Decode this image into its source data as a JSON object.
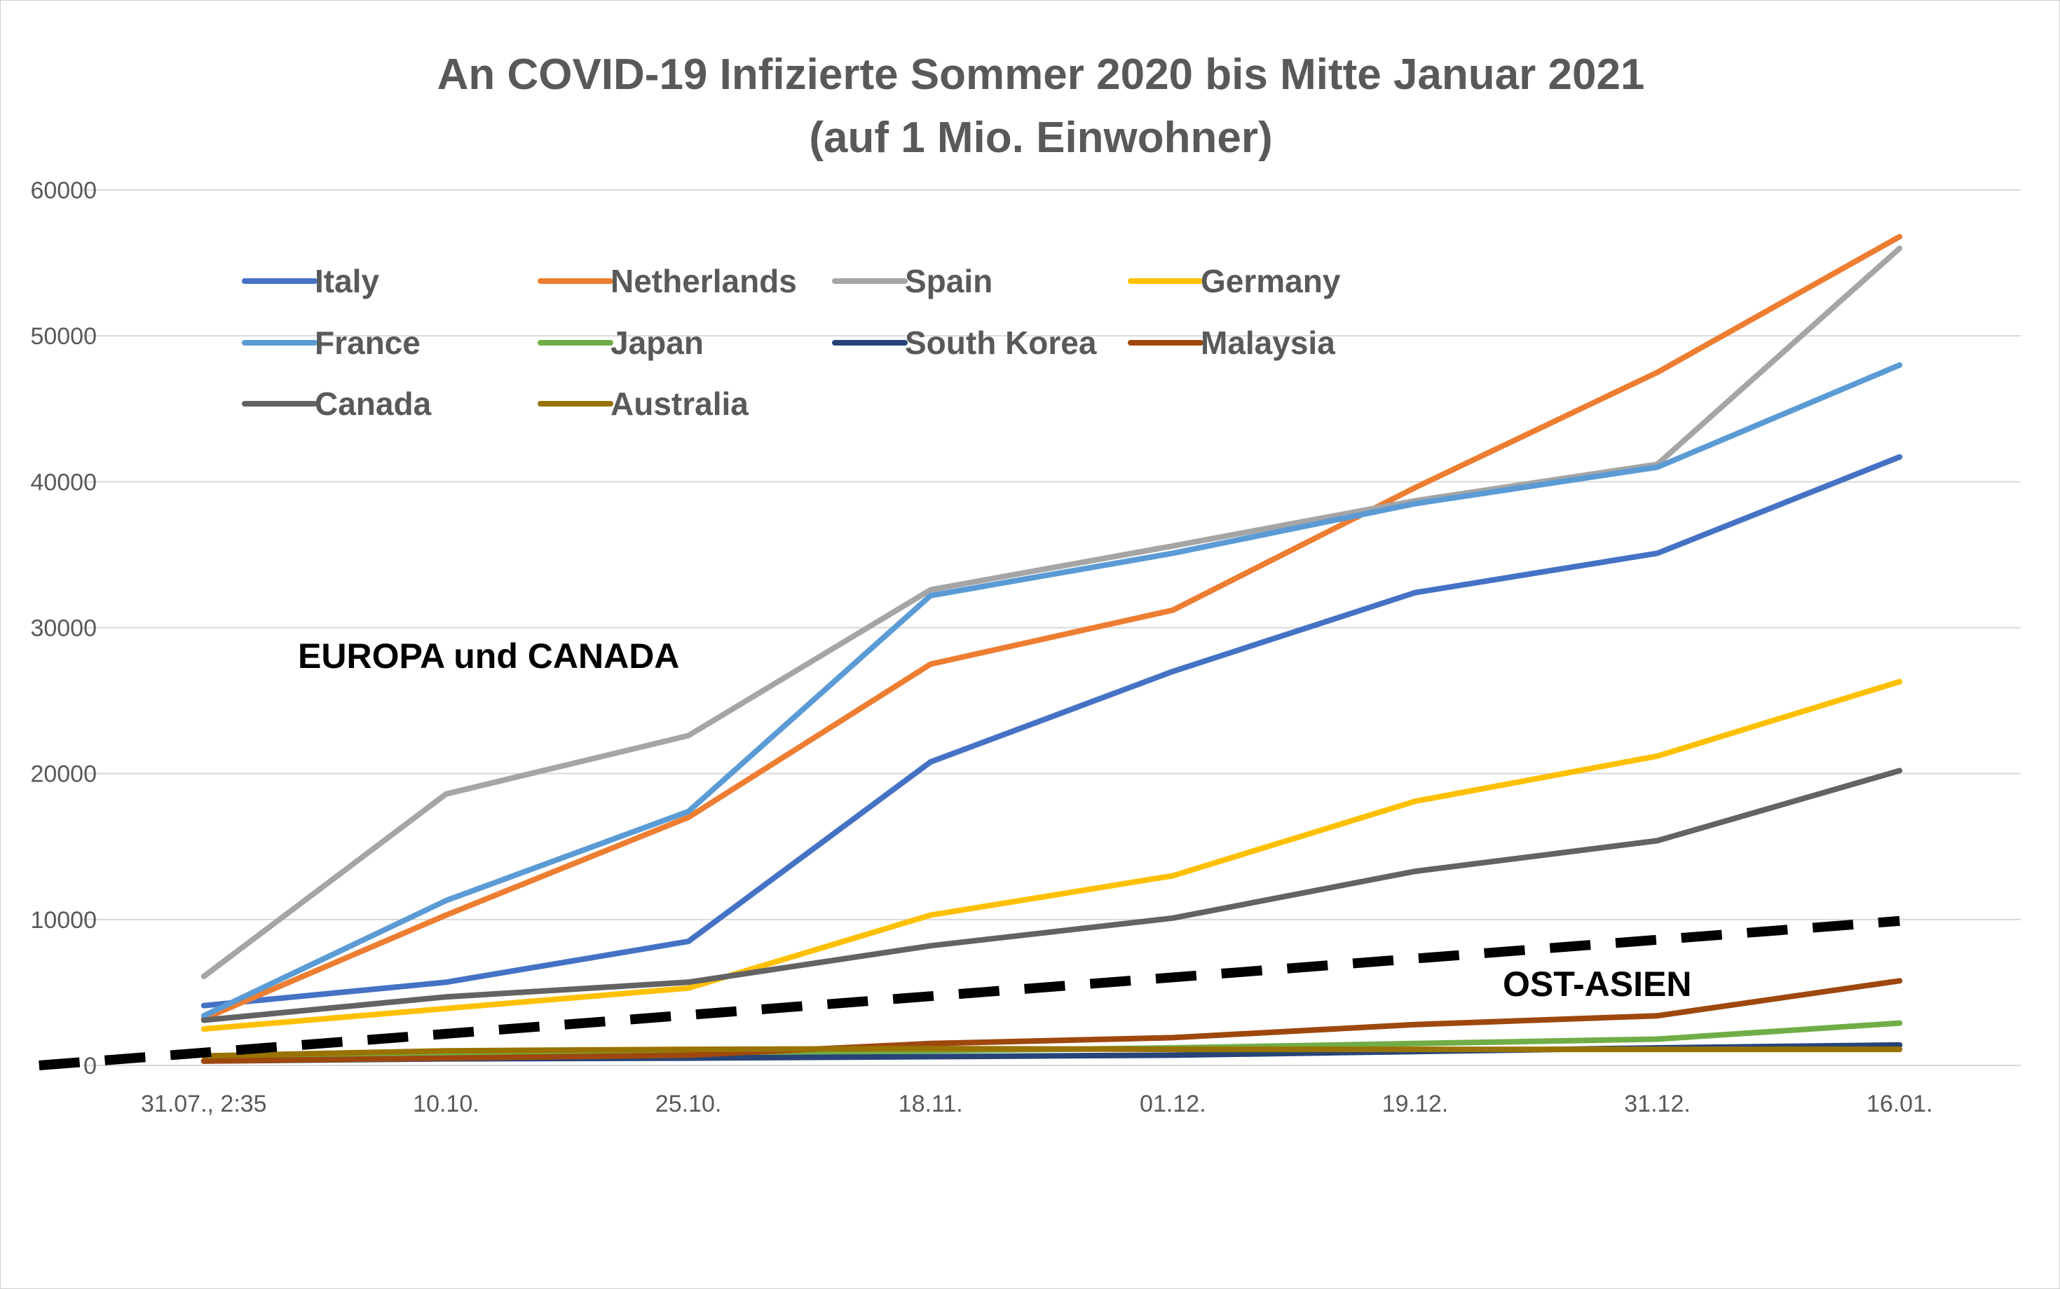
{
  "chart_data": {
    "type": "line",
    "title": "An COVID-19 Infizierte Sommer 2020 bis Mitte Januar 2021",
    "subtitle": "(auf 1 Mio. Einwohner)",
    "xlabel": "",
    "ylabel": "",
    "categories": [
      "31.07., 2:35",
      "10.10.",
      "25.10.",
      "18.11.",
      "01.12.",
      "19.12.",
      "31.12.",
      "16.01."
    ],
    "ylim": [
      0,
      60000
    ],
    "yticks": [
      0,
      10000,
      20000,
      30000,
      40000,
      50000,
      60000
    ],
    "grid": true,
    "legend_position": "top-left",
    "series": [
      {
        "name": "Italy",
        "color": "#4472C4",
        "values": [
          4100,
          5700,
          8500,
          20800,
          27000,
          32400,
          35100,
          41700
        ]
      },
      {
        "name": "Netherlands",
        "color": "#ED7D31",
        "values": [
          3200,
          10300,
          17000,
          27500,
          31200,
          39600,
          47500,
          56800
        ]
      },
      {
        "name": "Spain",
        "color": "#A5A5A5",
        "values": [
          6100,
          18600,
          22600,
          32600,
          35600,
          38700,
          41200,
          56000
        ]
      },
      {
        "name": "Germany",
        "color": "#FFC000",
        "values": [
          2500,
          3900,
          5300,
          10300,
          13000,
          18100,
          21200,
          26300
        ]
      },
      {
        "name": "France",
        "color": "#5B9BD5",
        "values": [
          3400,
          11300,
          17400,
          32200,
          35100,
          38500,
          41000,
          48000
        ]
      },
      {
        "name": "Japan",
        "color": "#70AD47",
        "values": [
          300,
          700,
          800,
          1000,
          1200,
          1500,
          1800,
          2900
        ]
      },
      {
        "name": "South Korea",
        "color": "#264478",
        "values": [
          300,
          450,
          500,
          600,
          700,
          950,
          1200,
          1400
        ]
      },
      {
        "name": "Malaysia",
        "color": "#9E480E",
        "values": [
          300,
          500,
          700,
          1500,
          1900,
          2800,
          3400,
          5800
        ]
      },
      {
        "name": "Canada",
        "color": "#636363",
        "values": [
          3100,
          4700,
          5700,
          8200,
          10100,
          13300,
          15400,
          20200
        ]
      },
      {
        "name": "Australia",
        "color": "#997300",
        "values": [
          650,
          1000,
          1100,
          1150,
          1100,
          1100,
          1100,
          1100
        ]
      }
    ],
    "trendline": {
      "style": "dashed",
      "color": "#000000",
      "from": {
        "x": -0.68,
        "y": 0
      },
      "to": {
        "x": 7.0,
        "y": 9900
      }
    },
    "annotations": [
      "EUROPA und CANADA",
      "OST-ASIEN"
    ]
  }
}
